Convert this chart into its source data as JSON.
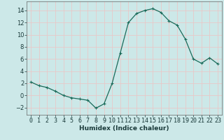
{
  "x": [
    0,
    1,
    2,
    3,
    4,
    5,
    6,
    7,
    8,
    9,
    10,
    11,
    12,
    13,
    14,
    15,
    16,
    17,
    18,
    19,
    20,
    21,
    22,
    23
  ],
  "y": [
    2.2,
    1.6,
    1.3,
    0.7,
    0.0,
    -0.4,
    -0.6,
    -0.8,
    -2.1,
    -1.4,
    2.0,
    7.0,
    12.0,
    13.5,
    14.0,
    14.3,
    13.7,
    12.3,
    11.6,
    9.3,
    6.0,
    5.3,
    6.2,
    5.2
  ],
  "line_color": "#1a6b5a",
  "marker": "+",
  "marker_size": 3,
  "marker_linewidth": 0.8,
  "line_width": 0.9,
  "background_color": "#cce8e8",
  "grid_color": "#e8c8c8",
  "xlabel": "Humidex (Indice chaleur)",
  "xlim": [
    -0.5,
    23.5
  ],
  "ylim": [
    -3.2,
    15.5
  ],
  "yticks": [
    -2,
    0,
    2,
    4,
    6,
    8,
    10,
    12,
    14
  ],
  "xticks": [
    0,
    1,
    2,
    3,
    4,
    5,
    6,
    7,
    8,
    9,
    10,
    11,
    12,
    13,
    14,
    15,
    16,
    17,
    18,
    19,
    20,
    21,
    22,
    23
  ],
  "label_fontsize": 6.5,
  "tick_fontsize": 6
}
